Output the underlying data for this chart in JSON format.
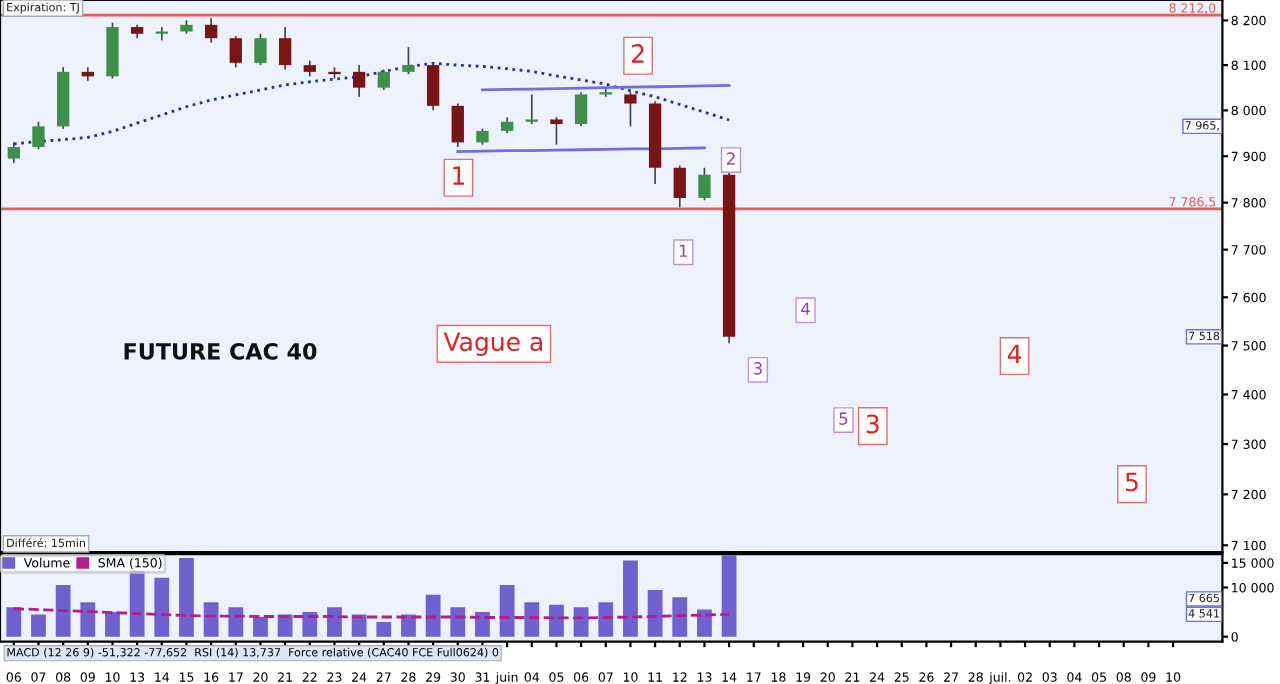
{
  "chart_data": [
    {
      "type": "candlestick",
      "title": "FUTURE CAC 40",
      "log": "y",
      "ylim": [
        7087,
        8246
      ],
      "tick_labels": "y",
      "yticks": [
        {
          "value": 7100,
          "label": "7 100"
        },
        {
          "value": 7200,
          "label": "7 200"
        },
        {
          "value": 7300,
          "label": "7 300"
        },
        {
          "value": 7400,
          "label": "7 400"
        },
        {
          "value": 7500,
          "label": "7 500"
        },
        {
          "value": 7600,
          "label": "7 600"
        },
        {
          "value": 7700,
          "label": "7 700"
        },
        {
          "value": 7800,
          "label": "7 800"
        },
        {
          "value": 7900,
          "label": "7 900"
        },
        {
          "value": 8000,
          "label": "8 000"
        },
        {
          "value": 8100,
          "label": "8 100"
        },
        {
          "value": 8200,
          "label": "8 200"
        }
      ],
      "ohlc": [
        [
          7895,
          7930,
          7885,
          7920
        ],
        [
          7920,
          7975,
          7915,
          7965
        ],
        [
          7965,
          8095,
          7960,
          8085
        ],
        [
          8085,
          8095,
          8065,
          8075
        ],
        [
          8075,
          8195,
          8070,
          8185
        ],
        [
          8185,
          8190,
          8160,
          8170
        ],
        [
          8170,
          8185,
          8155,
          8175
        ],
        [
          8175,
          8200,
          8170,
          8190
        ],
        [
          8190,
          8205,
          8150,
          8160
        ],
        [
          8160,
          8165,
          8095,
          8105
        ],
        [
          8105,
          8170,
          8100,
          8160
        ],
        [
          8160,
          8185,
          8090,
          8100
        ],
        [
          8100,
          8110,
          8075,
          8085
        ],
        [
          8085,
          8095,
          8070,
          8080
        ],
        [
          8085,
          8100,
          8030,
          8050
        ],
        [
          8050,
          8090,
          8045,
          8085
        ],
        [
          8085,
          8140,
          8080,
          8100
        ],
        [
          8100,
          8105,
          8000,
          8010
        ],
        [
          8010,
          8015,
          7920,
          7930
        ],
        [
          7930,
          7960,
          7925,
          7955
        ],
        [
          7955,
          7985,
          7950,
          7975
        ],
        [
          7975,
          8035,
          7970,
          7980
        ],
        [
          7980,
          7985,
          7925,
          7970
        ],
        [
          7970,
          8040,
          7965,
          8035
        ],
        [
          8035,
          8050,
          8030,
          8040
        ],
        [
          8035,
          8040,
          7965,
          8015
        ],
        [
          8015,
          8020,
          7840,
          7875
        ],
        [
          7875,
          7880,
          7790,
          7810
        ],
        [
          7810,
          7875,
          7805,
          7860
        ],
        [
          7860,
          7865,
          7505,
          7518
        ],
        null,
        null,
        null,
        null,
        null,
        null,
        null,
        null,
        null,
        null,
        null,
        null,
        null,
        null,
        null,
        null,
        null,
        null
      ],
      "series": [
        {
          "type": "line",
          "color": "#2233a0",
          "line_style": "dotted",
          "values": [
            7927,
            7932,
            7936,
            7941,
            7954,
            7972,
            7990,
            8008,
            8023,
            8034,
            8045,
            8056,
            8063,
            8069,
            8074,
            8086,
            8097,
            8104,
            8100,
            8097,
            8092,
            8086,
            8076,
            8067,
            8058,
            8043,
            8030,
            8013,
            7996,
            7979,
            null,
            null,
            null,
            null,
            null,
            null,
            null,
            null,
            null,
            null,
            null,
            null,
            null,
            null,
            null,
            null,
            null,
            null
          ]
        },
        {
          "type": "line",
          "color": "#6f6fe0",
          "line_style": "solid",
          "values": [
            null,
            null,
            null,
            null,
            null,
            null,
            null,
            null,
            null,
            null,
            null,
            null,
            null,
            null,
            null,
            null,
            null,
            null,
            null,
            8045,
            8046,
            8047,
            8048,
            8049,
            8050,
            8051,
            8052,
            8053,
            8054,
            8055,
            null,
            null,
            null,
            null,
            null,
            null,
            null,
            null,
            null,
            null,
            null,
            null,
            null,
            null,
            null,
            null,
            null,
            null
          ]
        },
        {
          "type": "line",
          "color": "#6f6fe0",
          "line_style": "solid",
          "values": [
            null,
            null,
            null,
            null,
            null,
            null,
            null,
            null,
            null,
            null,
            null,
            null,
            null,
            null,
            null,
            null,
            null,
            null,
            7910,
            7911,
            7912,
            7912,
            7913,
            7914,
            7915,
            7916,
            7916,
            7917,
            7918,
            null,
            null,
            null,
            null,
            null,
            null,
            null,
            null,
            null,
            null,
            null,
            null,
            null,
            null,
            null,
            null,
            null,
            null,
            null
          ]
        }
      ],
      "ref_lines": [
        {
          "axis": "y",
          "value": 8212.0,
          "label": "8 212,0",
          "color": "#e06060"
        },
        {
          "axis": "y",
          "value": 7786.5,
          "label": "7 786,5",
          "color": "#e06060"
        }
      ],
      "annotations": [
        "Expiration: TJ",
        "Différé: 15min",
        "Vague a",
        "1",
        "2",
        "2",
        "1",
        "4",
        "3",
        "5",
        "3",
        "4",
        "5",
        {
          "text": "7 965,",
          "y": 7965
        },
        {
          "text": "7 518",
          "y": 7518
        }
      ]
    },
    {
      "type": "bar",
      "ylim": [
        -1000,
        16800
      ],
      "legend": "top left",
      "categories": [
        "06",
        "07",
        "08",
        "09",
        "10",
        "13",
        "14",
        "15",
        "16",
        "17",
        "20",
        "21",
        "22",
        "23",
        "24",
        "27",
        "28",
        "29",
        "30",
        "31",
        "juin",
        "04",
        "05",
        "06",
        "07",
        "10",
        "11",
        "12",
        "13",
        "14",
        "17",
        "18",
        "19",
        "20",
        "21",
        "24",
        "25",
        "26",
        "27",
        "28",
        "juil.",
        "02",
        "03",
        "04",
        "05",
        "08",
        "09",
        "10"
      ],
      "yticks": [
        0,
        {
          "value": 10000,
          "label": "10 000"
        },
        {
          "value": 15000,
          "label": "15 000"
        }
      ],
      "series": [
        {
          "name": "Volume",
          "type": "bar",
          "color": "#7060d0",
          "values": [
            6000,
            4500,
            10500,
            7000,
            5000,
            13500,
            12000,
            16000,
            7000,
            6000,
            4000,
            4500,
            5000,
            6000,
            4500,
            3000,
            4500,
            8500,
            6000,
            5000,
            10500,
            7000,
            6500,
            6000,
            7000,
            15500,
            9500,
            8000,
            5500,
            16500,
            null,
            null,
            null,
            null,
            null,
            null,
            null,
            null,
            null,
            null,
            null,
            null,
            null,
            null,
            null,
            null,
            null,
            null
          ]
        },
        {
          "name": "SMA (150)",
          "type": "line",
          "color": "#b0208a",
          "line_style": "dashed",
          "values": [
            5700,
            5500,
            5300,
            5100,
            4900,
            4700,
            4500,
            4300,
            4200,
            4200,
            4100,
            4100,
            4100,
            4100,
            4000,
            4000,
            4000,
            4000,
            4000,
            3900,
            3900,
            3900,
            3800,
            3800,
            3900,
            4000,
            4100,
            4300,
            4400,
            4541,
            null,
            null,
            null,
            null,
            null,
            null,
            null,
            null,
            null,
            null,
            null,
            null,
            null,
            null,
            null,
            null,
            null,
            null
          ]
        }
      ],
      "annotations": [
        "MACD (12 26 9) -51,322 -77,652  RSI (14) 13,737  Force relative (CAC40 FCE Full0624) 0",
        {
          "text": "7 665",
          "y": 7665
        },
        {
          "text": "4 541",
          "y": 4541
        }
      ]
    }
  ]
}
